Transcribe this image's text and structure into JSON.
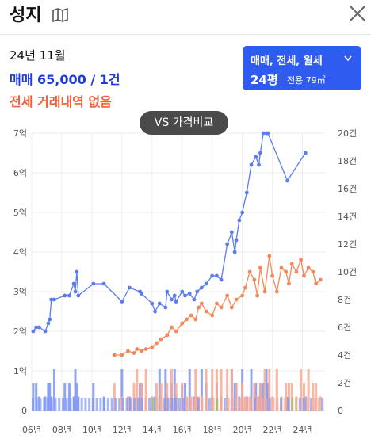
{
  "header": {
    "title": "성지",
    "map_icon": "map-icon",
    "close_icon": "close-icon"
  },
  "summary": {
    "date": "24년 11월",
    "trade": "매매 65,000 / 1건",
    "jeonse": "전세 거래내역 없음"
  },
  "filter": {
    "types": "매매, 전세, 월세",
    "size": "24평",
    "area": "전용 79㎡"
  },
  "vs_button": "VS 가격비교",
  "colors": {
    "trade": "#5b7cf0",
    "jeonse": "#f4885a",
    "bar_trade": "#7f95f2",
    "bar_jeonse": "#f7a994",
    "bar_other": "#8cc46e",
    "accent": "#2f5bf0"
  },
  "chart_data": {
    "type": "line",
    "x_ticks": [
      "06년",
      "08년",
      "10년",
      "12년",
      "14년",
      "16년",
      "18년",
      "20년",
      "22년",
      "24년"
    ],
    "y_left_ticks": [
      "0",
      "1억",
      "2억",
      "3억",
      "4억",
      "5억",
      "6억",
      "7억"
    ],
    "y_right_ticks": [
      "0",
      "2건",
      "4건",
      "6건",
      "8건",
      "10건",
      "12건",
      "14건",
      "16건",
      "18건",
      "20건"
    ],
    "x_range": [
      2006,
      2025.5
    ],
    "y_left_range": [
      0,
      7
    ],
    "y_right_range": [
      0,
      20
    ],
    "grid": true,
    "series": [
      {
        "key": "trade",
        "x": [
          2006.1,
          2006.3,
          2006.5,
          2006.9,
          2007.1,
          2007.2,
          2007.3,
          2007.5,
          2008.2,
          2008.5,
          2008.8,
          2008.9,
          2009.0,
          2009.1,
          2010.1,
          2010.8,
          2012.0,
          2012.5,
          2013.2,
          2013.3,
          2014.0,
          2014.2,
          2014.5,
          2014.9,
          2015.0,
          2015.3,
          2015.5,
          2015.6,
          2016.0,
          2016.2,
          2016.5,
          2016.8,
          2017.0,
          2017.3,
          2017.6,
          2018.0,
          2018.3,
          2018.6,
          2019.0,
          2019.3,
          2019.5,
          2019.6,
          2019.8,
          2020.0,
          2020.3,
          2020.6,
          2020.9,
          2021.1,
          2021.2,
          2021.4,
          2021.6,
          2021.7,
          2023.0,
          2024.2
        ],
        "y": [
          2.0,
          2.1,
          2.1,
          2.0,
          2.2,
          2.3,
          2.8,
          2.8,
          2.9,
          2.9,
          3.2,
          3.0,
          3.5,
          2.9,
          3.2,
          3.2,
          2.75,
          3.1,
          3.0,
          2.95,
          2.7,
          2.5,
          2.7,
          2.6,
          3.0,
          2.8,
          2.9,
          2.75,
          3.0,
          2.9,
          2.95,
          2.8,
          3.0,
          3.1,
          3.2,
          3.4,
          3.4,
          3.3,
          4.2,
          4.5,
          4.0,
          4.3,
          4.8,
          5.0,
          5.5,
          6.2,
          6.4,
          6.2,
          6.5,
          7.0,
          7.0,
          7.0,
          5.8,
          6.5
        ]
      },
      {
        "key": "jeonse",
        "x": [
          2011.5,
          2012.0,
          2012.4,
          2012.8,
          2013.0,
          2013.3,
          2013.6,
          2014.0,
          2014.3,
          2014.6,
          2015.0,
          2015.3,
          2015.6,
          2016.0,
          2016.3,
          2016.6,
          2016.9,
          2017.1,
          2017.3,
          2017.6,
          2018.0,
          2018.3,
          2018.6,
          2019.0,
          2019.3,
          2019.6,
          2020.0,
          2020.2,
          2020.5,
          2020.8,
          2021.0,
          2021.2,
          2021.5,
          2021.8,
          2022.0,
          2022.3,
          2022.6,
          2022.9,
          2023.1,
          2023.3,
          2023.6,
          2023.9,
          2024.1,
          2024.4,
          2024.7,
          2024.9,
          2025.2
        ],
        "y": [
          1.4,
          1.4,
          1.5,
          1.45,
          1.55,
          1.5,
          1.55,
          1.6,
          1.7,
          1.8,
          1.9,
          2.1,
          2.0,
          2.2,
          2.3,
          2.4,
          2.3,
          2.6,
          2.7,
          2.5,
          2.4,
          2.7,
          2.6,
          2.9,
          2.6,
          2.8,
          2.9,
          3.1,
          3.5,
          3.3,
          2.9,
          3.6,
          3.0,
          3.9,
          3.4,
          3.0,
          3.6,
          3.5,
          3.2,
          3.7,
          3.5,
          3.8,
          3.4,
          3.6,
          3.5,
          3.2,
          3.3
        ]
      }
    ]
  }
}
